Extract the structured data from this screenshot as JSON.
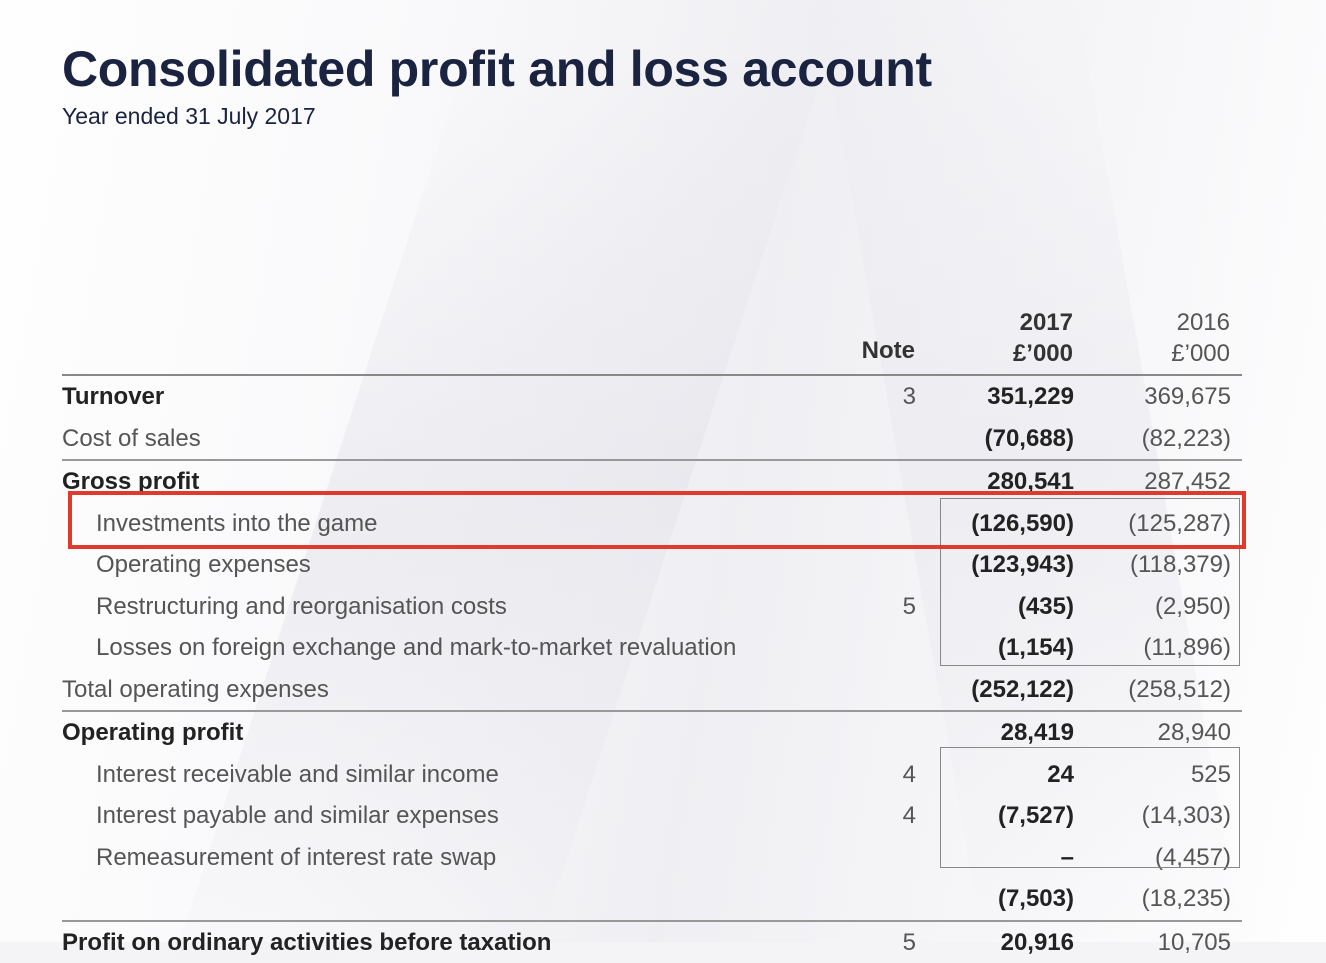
{
  "header": {
    "title": "Consolidated profit and loss account",
    "subtitle": "Year ended 31 July 2017"
  },
  "columns": {
    "note": "Note",
    "y2017": "2017",
    "y2016": "2016",
    "unit_2017": "£’000",
    "unit_2016": "£’000"
  },
  "rows": [
    {
      "label": "Turnover",
      "note": "3",
      "v2017": "351,229",
      "v2016": "369,675"
    },
    {
      "label": "Cost of sales",
      "note": "",
      "v2017": "(70,688)",
      "v2016": "(82,223)"
    },
    {
      "label": "Gross profit",
      "note": "",
      "v2017": "280,541",
      "v2016": "287,452"
    },
    {
      "label": "Investments into the game",
      "note": "",
      "v2017": "(126,590)",
      "v2016": "(125,287)"
    },
    {
      "label": "Operating expenses",
      "note": "",
      "v2017": "(123,943)",
      "v2016": "(118,379)"
    },
    {
      "label": "Restructuring and reorganisation costs",
      "note": "5",
      "v2017": "(435)",
      "v2016": "(2,950)"
    },
    {
      "label": "Losses on foreign exchange and mark-to-market revaluation",
      "note": "",
      "v2017": "(1,154)",
      "v2016": "(11,896)"
    },
    {
      "label": "Total operating expenses",
      "note": "",
      "v2017": "(252,122)",
      "v2016": "(258,512)"
    },
    {
      "label": "Operating profit",
      "note": "",
      "v2017": "28,419",
      "v2016": "28,940"
    },
    {
      "label": "Interest receivable and similar income",
      "note": "4",
      "v2017": "24",
      "v2016": "525"
    },
    {
      "label": "Interest payable and similar expenses",
      "note": "4",
      "v2017": "(7,527)",
      "v2016": "(14,303)"
    },
    {
      "label": "Remeasurement of interest rate swap",
      "note": "",
      "v2017": "–",
      "v2016": "(4,457)"
    },
    {
      "label": "",
      "note": "",
      "v2017": "(7,503)",
      "v2016": "(18,235)"
    },
    {
      "label": "Profit on ordinary activities before taxation",
      "note": "5",
      "v2017": "20,916",
      "v2016": "10,705"
    }
  ],
  "highlight_color": "#e03a2c",
  "title_color": "#1a2340"
}
